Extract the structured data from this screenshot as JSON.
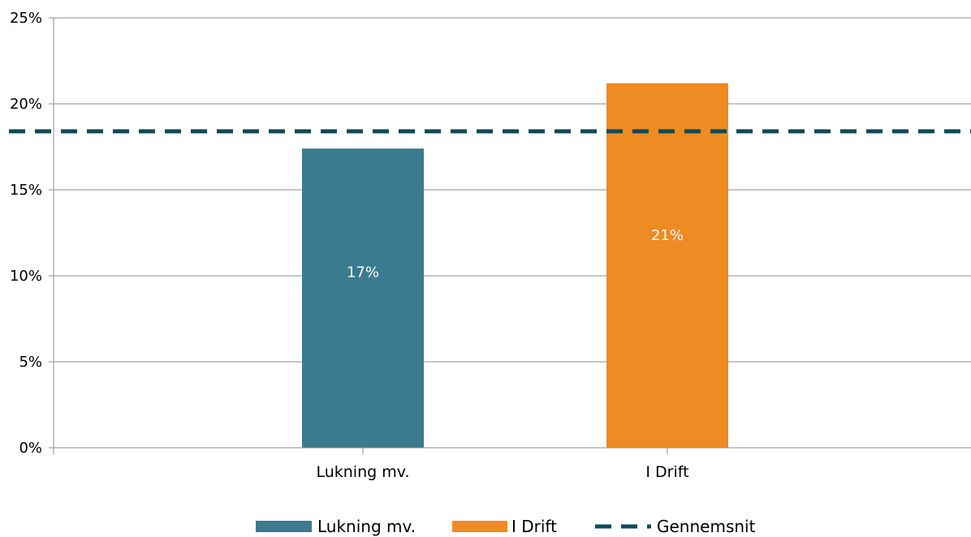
{
  "chart_data": {
    "type": "bar",
    "categories": [
      "Lukning mv.",
      "I Drift"
    ],
    "series": [
      {
        "name": "Lukning mv.",
        "values": [
          17.4,
          null
        ],
        "color": "#3A7B8F",
        "label": "17%"
      },
      {
        "name": "I Drift",
        "values": [
          null,
          21.2
        ],
        "color": "#EE8B22",
        "label": "21%"
      }
    ],
    "average": {
      "name": "Gennemsnit",
      "value": 18.4,
      "color": "#0F4A55",
      "style": "dashed"
    },
    "ylim": [
      0,
      25
    ],
    "yticks": [
      0,
      5,
      10,
      15,
      20,
      25
    ],
    "ytick_labels": [
      "0%",
      "5%",
      "10%",
      "15%",
      "20%",
      "25%"
    ],
    "grid": true,
    "legend_position": "bottom",
    "title": "",
    "xlabel": "",
    "ylabel": ""
  }
}
